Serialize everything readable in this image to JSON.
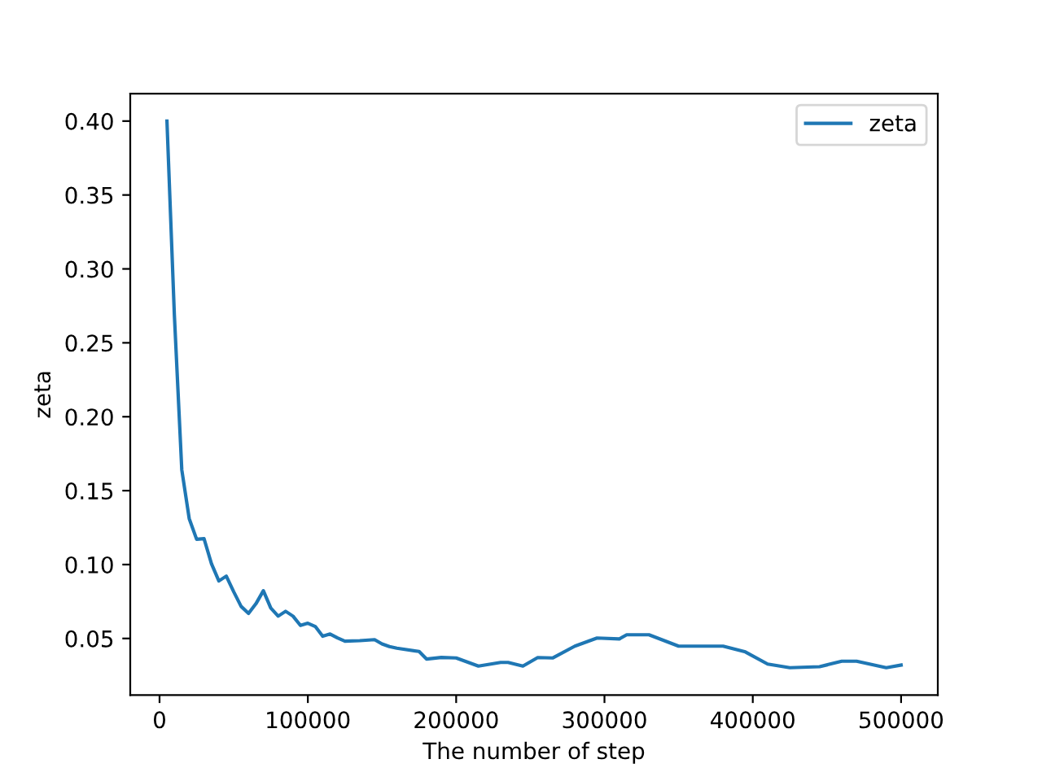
{
  "chart_data": {
    "type": "line",
    "xlabel": "The number of step",
    "ylabel": "zeta",
    "x": [
      5000,
      10000,
      15000,
      20000,
      25000,
      30000,
      35000,
      40000,
      45000,
      50000,
      55000,
      60000,
      65000,
      70000,
      75000,
      80000,
      85000,
      90000,
      95000,
      100000,
      105000,
      110000,
      115000,
      120000,
      125000,
      135000,
      145000,
      150000,
      155000,
      160000,
      175000,
      180000,
      190000,
      200000,
      215000,
      230000,
      235000,
      245000,
      255000,
      265000,
      280000,
      295000,
      310000,
      315000,
      330000,
      350000,
      370000,
      380000,
      395000,
      410000,
      425000,
      445000,
      460000,
      470000,
      490000,
      500000
    ],
    "series": [
      {
        "name": "zeta",
        "color": "#1f77b4",
        "values": [
          0.4,
          0.2687,
          0.1641,
          0.1311,
          0.1171,
          0.1175,
          0.1006,
          0.0889,
          0.0922,
          0.0816,
          0.0717,
          0.0669,
          0.0735,
          0.0823,
          0.0706,
          0.0651,
          0.0684,
          0.0651,
          0.0588,
          0.0603,
          0.0581,
          0.0515,
          0.053,
          0.0504,
          0.0482,
          0.0485,
          0.0492,
          0.0463,
          0.0445,
          0.0434,
          0.0412,
          0.0361,
          0.0372,
          0.0368,
          0.0313,
          0.0338,
          0.0338,
          0.0313,
          0.0371,
          0.0368,
          0.0448,
          0.0503,
          0.0497,
          0.0525,
          0.0525,
          0.0448,
          0.0448,
          0.0448,
          0.0409,
          0.0327,
          0.0302,
          0.0309,
          0.0346,
          0.0346,
          0.0302,
          0.032
        ]
      }
    ],
    "xlim": [
      -19750,
      524750
    ],
    "xticks": [
      0,
      100000,
      200000,
      300000,
      400000,
      500000
    ],
    "ylim": [
      0.0117,
      0.4185
    ],
    "yticks": [
      {
        "value": 0.05,
        "label": "0.05"
      },
      {
        "value": 0.1,
        "label": "0.10"
      },
      {
        "value": 0.15,
        "label": "0.15"
      },
      {
        "value": 0.2,
        "label": "0.20"
      },
      {
        "value": 0.25,
        "label": "0.25"
      },
      {
        "value": 0.3,
        "label": "0.30"
      },
      {
        "value": 0.35,
        "label": "0.35"
      },
      {
        "value": 0.4,
        "label": "0.40"
      }
    ],
    "legend": "top right",
    "marker": "none",
    "line_style": "solid",
    "grid": false
  }
}
